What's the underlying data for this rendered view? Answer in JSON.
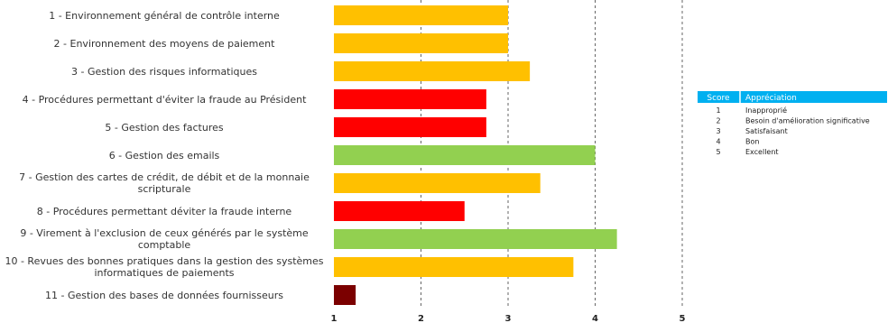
{
  "chart_data": {
    "type": "bar",
    "orientation": "horizontal",
    "categories": [
      [
        "1 - Environnement général de contrôle interne"
      ],
      [
        "2 - Environnement des moyens de paiement"
      ],
      [
        "3 - Gestion des risques informatiques"
      ],
      [
        "4 - Procédures permettant d'éviter la fraude au Président"
      ],
      [
        "5 - Gestion des factures"
      ],
      [
        "6 - Gestion des emails"
      ],
      [
        "7 - Gestion des cartes de crédit, de débit et de la monnaie",
        "scripturale"
      ],
      [
        "8 - Procédures permettant déviter la fraude interne"
      ],
      [
        "9 - Virement à l'exclusion de ceux générés par le système",
        "comptable"
      ],
      [
        "10 - Revues des bonnes pratiques dans la gestion des systèmes",
        "informatiques de paiements"
      ],
      [
        "11 - Gestion des bases de données fournisseurs"
      ]
    ],
    "values": [
      3.0,
      3.0,
      3.25,
      2.75,
      2.75,
      4.0,
      3.37,
      2.5,
      4.25,
      3.75,
      1.25
    ],
    "bar_colors": [
      "#FFC000",
      "#FFC000",
      "#FFC000",
      "#FF0000",
      "#FF0000",
      "#92D050",
      "#FFC000",
      "#FF0000",
      "#92D050",
      "#FFC000",
      "#7B0000"
    ],
    "x_ticks": [
      "1",
      "2",
      "3",
      "4",
      "5"
    ],
    "xlim": [
      1,
      5
    ],
    "grid": "vertical-dashed",
    "title": "",
    "xlabel": "",
    "ylabel": ""
  },
  "legend_table": {
    "headers": [
      "Score",
      "Appréciation"
    ],
    "header_color": "#00B0F0",
    "rows": [
      [
        "1",
        "Inapproprié"
      ],
      [
        "2",
        "Besoin d'amélioration significative"
      ],
      [
        "3",
        "Satisfaisant"
      ],
      [
        "4",
        "Bon"
      ],
      [
        "5",
        "Excellent"
      ]
    ]
  }
}
